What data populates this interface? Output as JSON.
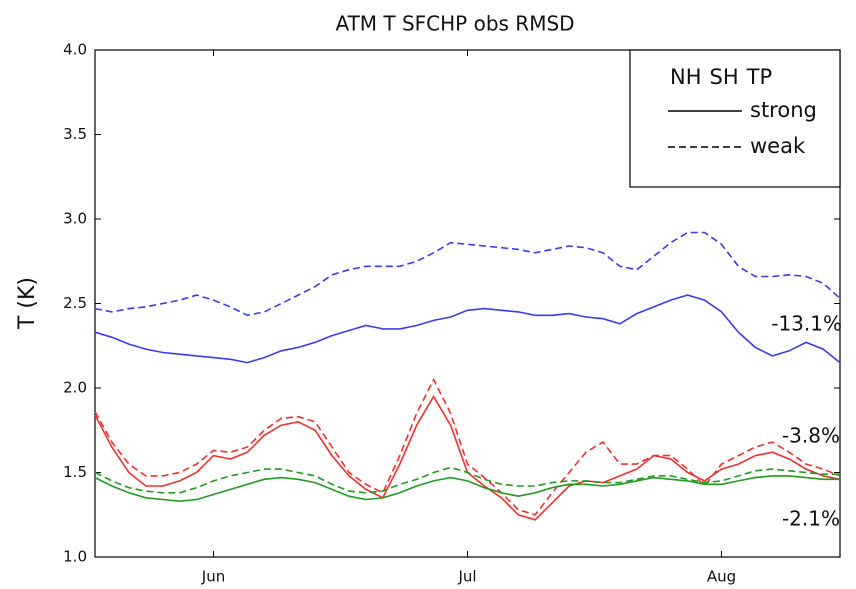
{
  "chart_data": {
    "type": "line",
    "title": "ATM T SFCHP obs RMSD",
    "y_label": "T (K)",
    "categories": [
      null,
      null,
      null,
      null,
      null,
      null,
      null,
      "Jun",
      null,
      null,
      null,
      null,
      null,
      null,
      null,
      null,
      null,
      null,
      null,
      null,
      null,
      null,
      "Jul",
      null,
      null,
      null,
      null,
      null,
      null,
      null,
      null,
      null,
      null,
      null,
      null,
      null,
      null,
      "Aug",
      null,
      null,
      null,
      null,
      null,
      null,
      null
    ],
    "ylim": [
      1,
      4
    ],
    "yticks": [
      {
        "value": 1,
        "label": "1.0"
      },
      1.5,
      {
        "value": 2,
        "label": "2.0"
      },
      2.5,
      {
        "value": 3,
        "label": "3.0"
      },
      3.5,
      {
        "value": 4,
        "label": "4.0"
      }
    ],
    "grid": false,
    "legend": {
      "corner": "upper right",
      "regions": [
        {
          "text": "NH",
          "color": "#2b2bf0"
        },
        {
          "text": "SH",
          "color": "#f03030"
        },
        {
          "text": "TP",
          "color": "#239a23"
        }
      ],
      "styles": [
        {
          "text": "strong",
          "dash": "solid"
        },
        {
          "text": "weak",
          "dash": "dashed"
        }
      ]
    },
    "series": [
      {
        "color": "#3b3bf0",
        "dash": "solid",
        "values": [
          2.33,
          2.3,
          2.26,
          2.23,
          2.21,
          2.2,
          2.19,
          2.18,
          2.17,
          2.15,
          2.18,
          2.22,
          2.24,
          2.27,
          2.31,
          2.34,
          2.37,
          2.35,
          2.35,
          2.37,
          2.4,
          2.42,
          2.46,
          2.47,
          2.46,
          2.45,
          2.43,
          2.43,
          2.44,
          2.42,
          2.41,
          2.38,
          2.44,
          2.48,
          2.52,
          2.55,
          2.52,
          2.45,
          2.33,
          2.24,
          2.19,
          2.22,
          2.27,
          2.23,
          2.15
        ]
      },
      {
        "color": "#3b3bf0",
        "dash": "dashed",
        "values": [
          2.47,
          2.45,
          2.47,
          2.48,
          2.5,
          2.52,
          2.55,
          2.52,
          2.48,
          2.43,
          2.45,
          2.5,
          2.55,
          2.6,
          2.67,
          2.7,
          2.72,
          2.72,
          2.72,
          2.75,
          2.8,
          2.86,
          2.85,
          2.84,
          2.83,
          2.82,
          2.8,
          2.82,
          2.84,
          2.83,
          2.8,
          2.72,
          2.7,
          2.78,
          2.86,
          2.92,
          2.92,
          2.85,
          2.72,
          2.66,
          2.66,
          2.67,
          2.66,
          2.62,
          2.53
        ]
      },
      {
        "color": "#f03030",
        "dash": "solid",
        "values": [
          1.84,
          1.65,
          1.5,
          1.42,
          1.42,
          1.45,
          1.5,
          1.6,
          1.58,
          1.62,
          1.72,
          1.78,
          1.8,
          1.75,
          1.6,
          1.48,
          1.4,
          1.35,
          1.55,
          1.78,
          1.95,
          1.78,
          1.5,
          1.42,
          1.35,
          1.25,
          1.22,
          1.32,
          1.42,
          1.45,
          1.44,
          1.48,
          1.52,
          1.6,
          1.58,
          1.5,
          1.45,
          1.52,
          1.55,
          1.6,
          1.62,
          1.58,
          1.52,
          1.48,
          1.46
        ]
      },
      {
        "color": "#f03030",
        "dash": "dashed",
        "values": [
          1.86,
          1.68,
          1.55,
          1.48,
          1.48,
          1.5,
          1.55,
          1.63,
          1.62,
          1.65,
          1.75,
          1.82,
          1.83,
          1.8,
          1.65,
          1.5,
          1.43,
          1.38,
          1.6,
          1.85,
          2.05,
          1.85,
          1.55,
          1.47,
          1.38,
          1.28,
          1.25,
          1.38,
          1.5,
          1.62,
          1.68,
          1.55,
          1.55,
          1.6,
          1.6,
          1.52,
          1.42,
          1.55,
          1.6,
          1.65,
          1.68,
          1.62,
          1.55,
          1.52,
          1.48
        ]
      },
      {
        "color": "#239a23",
        "dash": "solid",
        "values": [
          1.47,
          1.42,
          1.38,
          1.35,
          1.34,
          1.33,
          1.34,
          1.37,
          1.4,
          1.43,
          1.46,
          1.47,
          1.46,
          1.44,
          1.4,
          1.36,
          1.34,
          1.35,
          1.38,
          1.42,
          1.45,
          1.47,
          1.45,
          1.41,
          1.38,
          1.36,
          1.38,
          1.41,
          1.43,
          1.43,
          1.42,
          1.43,
          1.45,
          1.47,
          1.46,
          1.45,
          1.43,
          1.43,
          1.45,
          1.47,
          1.48,
          1.48,
          1.47,
          1.46,
          1.46
        ]
      },
      {
        "color": "#239a23",
        "dash": "dashed",
        "values": [
          1.5,
          1.45,
          1.41,
          1.39,
          1.38,
          1.38,
          1.41,
          1.45,
          1.48,
          1.5,
          1.52,
          1.52,
          1.5,
          1.48,
          1.43,
          1.39,
          1.38,
          1.39,
          1.43,
          1.46,
          1.5,
          1.53,
          1.5,
          1.46,
          1.43,
          1.42,
          1.42,
          1.44,
          1.45,
          1.45,
          1.44,
          1.44,
          1.46,
          1.48,
          1.48,
          1.46,
          1.44,
          1.45,
          1.48,
          1.51,
          1.52,
          1.51,
          1.5,
          1.49,
          1.49
        ]
      }
    ],
    "annotations": [
      {
        "text": "-13.1%",
        "color": "#4a4ae8"
      },
      {
        "text": "-3.8%",
        "color": "#e83a3a"
      },
      {
        "text": "-2.1%",
        "color": "#3a9a3a"
      }
    ]
  }
}
